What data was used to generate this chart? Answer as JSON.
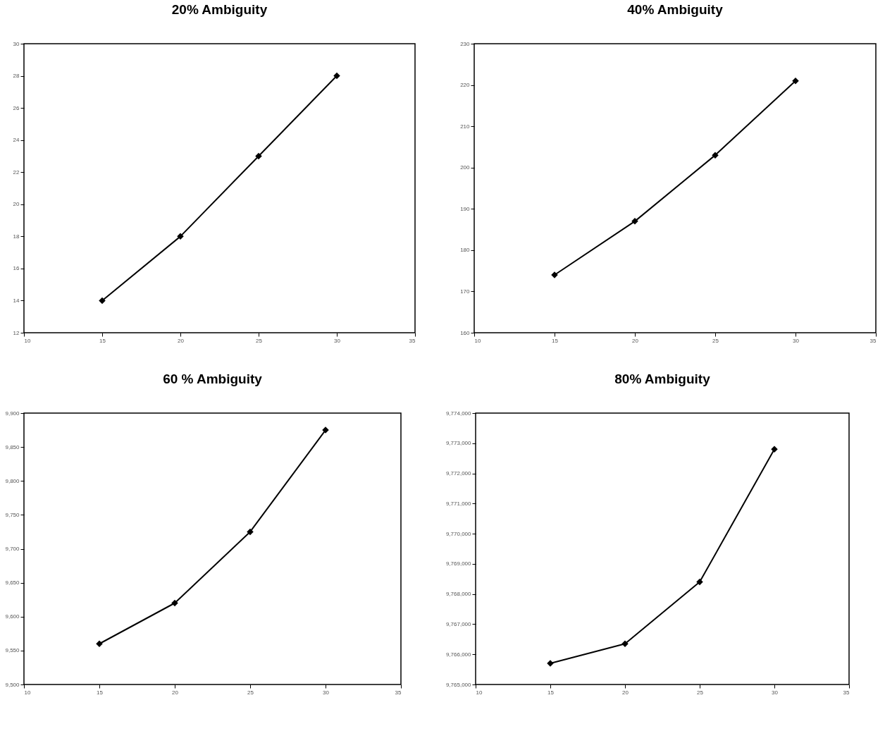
{
  "chart_data": [
    {
      "type": "line",
      "title": "20% Ambiguity",
      "x": [
        15,
        20,
        25,
        30
      ],
      "series": [
        {
          "color": "#000000",
          "values": [
            14,
            18,
            23,
            28
          ]
        }
      ],
      "xlim": [
        10,
        35
      ],
      "xticks": [
        10,
        15,
        20,
        25,
        30,
        35
      ],
      "ylim": [
        12,
        30
      ],
      "yticks": [
        12,
        14,
        16,
        18,
        20,
        22,
        24,
        26,
        28,
        30
      ],
      "marker": "diamond",
      "grid": false,
      "legend": false
    },
    {
      "type": "line",
      "title": "40% Ambiguity",
      "x": [
        15,
        20,
        25,
        30
      ],
      "series": [
        {
          "color": "#000000",
          "values": [
            174,
            187,
            203,
            221
          ]
        }
      ],
      "xlim": [
        10,
        35
      ],
      "xticks": [
        10,
        15,
        20,
        25,
        30,
        35
      ],
      "ylim": [
        160,
        230
      ],
      "yticks": [
        160,
        170,
        180,
        190,
        200,
        210,
        220,
        230
      ],
      "marker": "diamond",
      "grid": false,
      "legend": false
    },
    {
      "type": "line",
      "title": "60 %  Ambiguity",
      "x": [
        15,
        20,
        25,
        30
      ],
      "series": [
        {
          "color": "#000000",
          "values": [
            9560,
            9620,
            9725,
            9875
          ]
        }
      ],
      "xlim": [
        10,
        35
      ],
      "xticks": [
        10,
        15,
        20,
        25,
        30,
        35
      ],
      "ylim": [
        9500,
        9900
      ],
      "yticks": [
        {
          "value": 9500,
          "label": "9,500"
        },
        {
          "value": 9550,
          "label": "9,550"
        },
        {
          "value": 9600,
          "label": "9,600"
        },
        {
          "value": 9650,
          "label": "9,650"
        },
        {
          "value": 9700,
          "label": "9,700"
        },
        {
          "value": 9750,
          "label": "9,750"
        },
        {
          "value": 9800,
          "label": "9,800"
        },
        {
          "value": 9850,
          "label": "9,850"
        },
        {
          "value": 9900,
          "label": "9,900"
        }
      ],
      "marker": "diamond",
      "grid": false,
      "legend": false
    },
    {
      "type": "line",
      "title": "80% Ambiguity",
      "x": [
        15,
        20,
        25,
        30
      ],
      "series": [
        {
          "color": "#000000",
          "values": [
            9765700,
            9766350,
            9768400,
            9772800
          ]
        }
      ],
      "xlim": [
        10,
        35
      ],
      "xticks": [
        10,
        15,
        20,
        25,
        30,
        35
      ],
      "ylim": [
        9765000,
        9774000
      ],
      "yticks": [
        {
          "value": 9765000,
          "label": "9,765,000"
        },
        {
          "value": 9766000,
          "label": "9,766,000"
        },
        {
          "value": 9767000,
          "label": "9,767,000"
        },
        {
          "value": 9768000,
          "label": "9,768,000"
        },
        {
          "value": 9769000,
          "label": "9,769,000"
        },
        {
          "value": 9770000,
          "label": "9,770,000"
        },
        {
          "value": 9771000,
          "label": "9,771,000"
        },
        {
          "value": 9772000,
          "label": "9,772,000"
        },
        {
          "value": 9773000,
          "label": "9,773,000"
        },
        {
          "value": 9774000,
          "label": "9,774,000"
        }
      ],
      "marker": "diamond",
      "grid": false,
      "legend": false
    }
  ]
}
